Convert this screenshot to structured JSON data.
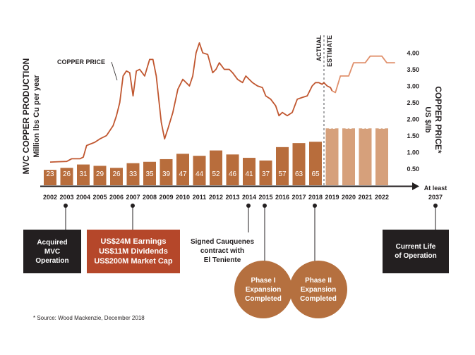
{
  "chart_data": {
    "type": "bar+line",
    "categories": [
      "2002",
      "2003",
      "2004",
      "2005",
      "2006",
      "2007",
      "2008",
      "2009",
      "2010",
      "2011",
      "2012",
      "2013",
      "2014",
      "2015",
      "2016",
      "2017",
      "2018",
      "2019",
      "2020",
      "2021",
      "2022"
    ],
    "production": {
      "axis_label_line1": "MVC COPPER PRODUCTION",
      "axis_label_line2": "Million lbs Cu per year",
      "values": [
        23,
        26,
        31,
        29,
        26,
        33,
        35,
        39,
        47,
        44,
        52,
        46,
        41,
        37,
        57,
        63,
        65,
        85,
        85,
        85,
        85
      ],
      "estimate_from_index": 17,
      "actual_color": "#b86d3c",
      "estimate_color": "#d6a07b"
    },
    "copper_price": {
      "label": "COPPER PRICE",
      "axis_label_line1": "COPPER PRICE*",
      "axis_label_line2": "US $/lb",
      "ticks": [
        "0.50",
        "1.00",
        "1.50",
        "2.00",
        "2.50",
        "3.00",
        "3.50",
        "4.00"
      ],
      "ylim": [
        0,
        4.25
      ],
      "actual_color": "#c0562f",
      "estimate_color": "#e0906c",
      "actual_points": [
        [
          2002,
          0.7
        ],
        [
          2002.5,
          0.71
        ],
        [
          2003,
          0.72
        ],
        [
          2003.3,
          0.8
        ],
        [
          2003.8,
          0.8
        ],
        [
          2004,
          0.85
        ],
        [
          2004.2,
          1.2
        ],
        [
          2004.7,
          1.3
        ],
        [
          2005,
          1.4
        ],
        [
          2005.4,
          1.5
        ],
        [
          2005.8,
          1.8
        ],
        [
          2006,
          2.1
        ],
        [
          2006.2,
          2.5
        ],
        [
          2006.4,
          3.3
        ],
        [
          2006.6,
          3.45
        ],
        [
          2006.8,
          3.4
        ],
        [
          2007,
          2.7
        ],
        [
          2007.2,
          3.45
        ],
        [
          2007.4,
          3.5
        ],
        [
          2007.7,
          3.3
        ],
        [
          2008,
          3.8
        ],
        [
          2008.2,
          3.8
        ],
        [
          2008.4,
          3.3
        ],
        [
          2008.7,
          1.9
        ],
        [
          2008.9,
          1.4
        ],
        [
          2009.1,
          1.7
        ],
        [
          2009.4,
          2.2
        ],
        [
          2009.7,
          2.9
        ],
        [
          2010,
          3.2
        ],
        [
          2010.2,
          3.1
        ],
        [
          2010.4,
          3.0
        ],
        [
          2010.6,
          3.3
        ],
        [
          2010.8,
          4.0
        ],
        [
          2011,
          4.3
        ],
        [
          2011.2,
          4.0
        ],
        [
          2011.5,
          3.95
        ],
        [
          2011.8,
          3.4
        ],
        [
          2012,
          3.5
        ],
        [
          2012.2,
          3.7
        ],
        [
          2012.5,
          3.5
        ],
        [
          2012.8,
          3.5
        ],
        [
          2013,
          3.4
        ],
        [
          2013.3,
          3.2
        ],
        [
          2013.6,
          3.1
        ],
        [
          2013.8,
          3.3
        ],
        [
          2014,
          3.2
        ],
        [
          2014.2,
          3.1
        ],
        [
          2014.5,
          3.0
        ],
        [
          2014.8,
          2.95
        ],
        [
          2015,
          2.7
        ],
        [
          2015.3,
          2.6
        ],
        [
          2015.6,
          2.4
        ],
        [
          2015.8,
          2.1
        ],
        [
          2016,
          2.2
        ],
        [
          2016.3,
          2.1
        ],
        [
          2016.6,
          2.2
        ],
        [
          2016.9,
          2.6
        ],
        [
          2017.2,
          2.65
        ],
        [
          2017.5,
          2.7
        ],
        [
          2017.8,
          3.0
        ],
        [
          2018,
          3.1
        ],
        [
          2018.2,
          3.1
        ],
        [
          2018.4,
          3.05
        ],
        [
          2018.5,
          3.1
        ],
        [
          2018.7,
          3.0
        ],
        [
          2018.9,
          2.95
        ],
        [
          2019,
          2.85
        ]
      ],
      "estimate_points": [
        [
          2019,
          2.85
        ],
        [
          2019.2,
          2.8
        ],
        [
          2019.5,
          3.3
        ],
        [
          2020,
          3.3
        ],
        [
          2020.3,
          3.7
        ],
        [
          2021,
          3.7
        ],
        [
          2021.3,
          3.9
        ],
        [
          2022,
          3.9
        ],
        [
          2022.3,
          3.7
        ],
        [
          2022.8,
          3.7
        ]
      ]
    },
    "divider_labels": {
      "left": "ACTUAL",
      "right": "ESTIMATE"
    },
    "end_label_line1": "At least",
    "end_label_line2": "2037"
  },
  "annotations": [
    {
      "id": "acquired",
      "text": "Acquired\nMVC\nOperation",
      "style": "dark"
    },
    {
      "id": "earnings",
      "text": "US$24M Earnings\nUS$11M Dividends\nUS$200M Market Cap",
      "style": "red"
    },
    {
      "id": "cauquenes",
      "text": "Signed Cauquenes\ncontract with\nEl Teniente",
      "style": "white"
    },
    {
      "id": "phase1",
      "text": "Phase I\nExpansion\nCompleted",
      "style": "circle"
    },
    {
      "id": "phase2",
      "text": "Phase II\nExpansion\nCompleted",
      "style": "circle"
    },
    {
      "id": "current-life",
      "text": "Current Life\nof Operation",
      "style": "dark"
    }
  ],
  "source": "* Source: Wood Mackenzie, December 2018"
}
